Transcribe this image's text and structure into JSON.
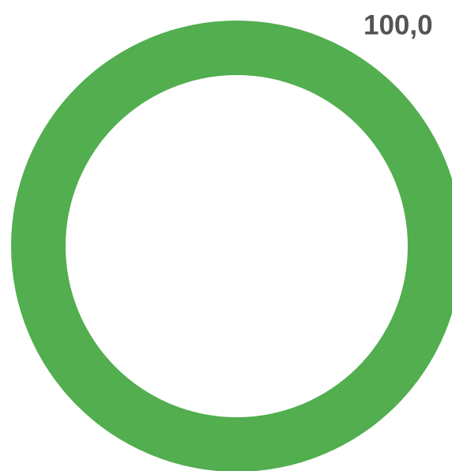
{
  "chart_data": {
    "type": "pie",
    "donut": true,
    "values": [
      100
    ],
    "value_labels": [
      "100,0"
    ],
    "colors": [
      "#52ae4f"
    ]
  }
}
